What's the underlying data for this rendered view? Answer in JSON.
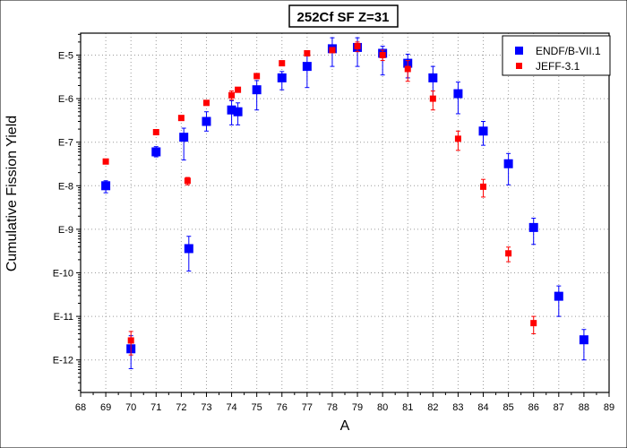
{
  "chart_data": {
    "type": "scatter",
    "title": "252Cf SF Z=31",
    "xlabel": "A",
    "ylabel": "Cumulative Fission Yield",
    "x_range": [
      68,
      89
    ],
    "x_ticks": [
      "68",
      "69",
      "70",
      "71",
      "72",
      "73",
      "74",
      "75",
      "76",
      "77",
      "78",
      "79",
      "80",
      "81",
      "82",
      "83",
      "84",
      "85",
      "86",
      "87",
      "88",
      "89"
    ],
    "y_scale": "log",
    "y_ticks": [
      {
        "label": "E-5",
        "value": 1e-05
      },
      {
        "label": "E-6",
        "value": 1e-06
      },
      {
        "label": "E-7",
        "value": 1e-07
      },
      {
        "label": "E-8",
        "value": 1e-08
      },
      {
        "label": "E-9",
        "value": 1e-09
      },
      {
        "label": "E-10",
        "value": 1e-10
      },
      {
        "label": "E-11",
        "value": 1e-11
      },
      {
        "label": "E-12",
        "value": 1e-12
      }
    ],
    "grid": true,
    "legend_position": "top-right",
    "series": [
      {
        "name": "ENDF/B-VII.1",
        "color": "#0000ff",
        "marker": "square",
        "points": [
          {
            "x": 69,
            "y": 1e-08,
            "lo": 6.9e-09,
            "hi": 1.3e-08
          },
          {
            "x": 70,
            "y": 1.8e-12,
            "lo": 6.3e-13,
            "hi": 3.6e-12
          },
          {
            "x": 71,
            "y": 6e-08,
            "lo": 4.6e-08,
            "hi": 7.9e-08
          },
          {
            "x": 72.1,
            "y": 1.3e-07,
            "lo": 3.9e-08,
            "hi": 2.1e-07
          },
          {
            "x": 72.3,
            "y": 3.6e-10,
            "lo": 1.1e-10,
            "hi": 6.9e-10
          },
          {
            "x": 73,
            "y": 3e-07,
            "lo": 1.8e-07,
            "hi": 5e-07
          },
          {
            "x": 74,
            "y": 5.5e-07,
            "lo": 2.5e-07,
            "hi": 9e-07
          },
          {
            "x": 74.25,
            "y": 5e-07,
            "lo": 2.5e-07,
            "hi": 8e-07
          },
          {
            "x": 75,
            "y": 1.6e-06,
            "lo": 5.5e-07,
            "hi": 2.6e-06
          },
          {
            "x": 76,
            "y": 3e-06,
            "lo": 1.6e-06,
            "hi": 4.2e-06
          },
          {
            "x": 77,
            "y": 5.5e-06,
            "lo": 1.8e-06,
            "hi": 9.5e-06
          },
          {
            "x": 78,
            "y": 1.4e-05,
            "lo": 5.5e-06,
            "hi": 2.5e-05
          },
          {
            "x": 79,
            "y": 1.5e-05,
            "lo": 5.5e-06,
            "hi": 2.5e-05
          },
          {
            "x": 80,
            "y": 1.1e-05,
            "lo": 3.5e-06,
            "hi": 1.6e-05
          },
          {
            "x": 81,
            "y": 6.5e-06,
            "lo": 3e-06,
            "hi": 1.05e-05
          },
          {
            "x": 82,
            "y": 3e-06,
            "lo": 1.1e-06,
            "hi": 5.5e-06
          },
          {
            "x": 83,
            "y": 1.3e-06,
            "lo": 4.5e-07,
            "hi": 2.4e-06
          },
          {
            "x": 84,
            "y": 1.8e-07,
            "lo": 8.5e-08,
            "hi": 3e-07
          },
          {
            "x": 85,
            "y": 3.2e-08,
            "lo": 1.05e-08,
            "hi": 5.5e-08
          },
          {
            "x": 86,
            "y": 1.1e-09,
            "lo": 4.5e-10,
            "hi": 1.8e-09
          },
          {
            "x": 87,
            "y": 2.9e-11,
            "lo": 1e-11,
            "hi": 5e-11
          },
          {
            "x": 88,
            "y": 2.9e-12,
            "lo": 1e-12,
            "hi": 5e-12
          }
        ]
      },
      {
        "name": "JEFF-3.1",
        "color": "#ff0000",
        "marker": "square",
        "points": [
          {
            "x": 69,
            "y": 3.6e-08,
            "lo": 3.3e-08,
            "hi": 3.9e-08
          },
          {
            "x": 70,
            "y": 2.8e-12,
            "lo": 1.3e-12,
            "hi": 4.5e-12
          },
          {
            "x": 71,
            "y": 1.7e-07,
            "lo": 1.6e-07,
            "hi": 1.8e-07
          },
          {
            "x": 72,
            "y": 3.6e-07,
            "lo": 3.4e-07,
            "hi": 3.8e-07
          },
          {
            "x": 72.25,
            "y": 1.3e-08,
            "lo": 1.05e-08,
            "hi": 1.55e-08
          },
          {
            "x": 73,
            "y": 8e-07,
            "lo": 7.1e-07,
            "hi": 8.9e-07
          },
          {
            "x": 74,
            "y": 1.2e-06,
            "lo": 9.5e-07,
            "hi": 1.5e-06
          },
          {
            "x": 74.25,
            "y": 1.6e-06,
            "lo": 1.45e-06,
            "hi": 1.75e-06
          },
          {
            "x": 75,
            "y": 3.3e-06,
            "lo": 3e-06,
            "hi": 3.6e-06
          },
          {
            "x": 76,
            "y": 6.5e-06,
            "lo": 6e-06,
            "hi": 7e-06
          },
          {
            "x": 77,
            "y": 1.1e-05,
            "lo": 1e-05,
            "hi": 1.2e-05
          },
          {
            "x": 78,
            "y": 1.3e-05,
            "lo": 1.15e-05,
            "hi": 1.45e-05
          },
          {
            "x": 79,
            "y": 1.6e-05,
            "lo": 1.2e-05,
            "hi": 2e-05
          },
          {
            "x": 80,
            "y": 1e-05,
            "lo": 7.5e-06,
            "hi": 1.3e-05
          },
          {
            "x": 81,
            "y": 4.8e-06,
            "lo": 2.5e-06,
            "hi": 7.5e-06
          },
          {
            "x": 82,
            "y": 1e-06,
            "lo": 5.5e-07,
            "hi": 1.5e-06
          },
          {
            "x": 83,
            "y": 1.2e-07,
            "lo": 6.5e-08,
            "hi": 1.8e-07
          },
          {
            "x": 84,
            "y": 9.5e-09,
            "lo": 5.5e-09,
            "hi": 1.4e-08
          },
          {
            "x": 85,
            "y": 2.8e-10,
            "lo": 1.8e-10,
            "hi": 3.9e-10
          },
          {
            "x": 86,
            "y": 7e-12,
            "lo": 4e-12,
            "hi": 1e-11
          }
        ]
      }
    ]
  }
}
